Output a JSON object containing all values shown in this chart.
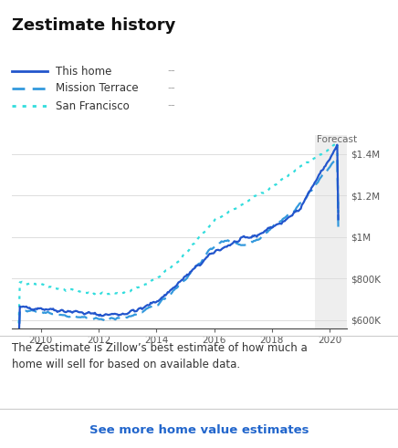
{
  "title": "Zestimate history",
  "legend_items": [
    {
      "label": "This home",
      "color": "#2255cc",
      "style": "solid"
    },
    {
      "label": "Mission Terrace",
      "color": "#3399dd",
      "style": "dashed"
    },
    {
      "label": "San Francisco",
      "color": "#33dddd",
      "style": "dotted"
    }
  ],
  "forecast_label": "Forecast",
  "forecast_start": 2019.5,
  "x_ticks": [
    2010,
    2012,
    2014,
    2016,
    2018,
    2020
  ],
  "y_ticks": [
    600000,
    800000,
    1000000,
    1200000,
    1400000
  ],
  "y_tick_labels": [
    "$600K",
    "$800K",
    "$1M",
    "$1.2M",
    "$1.4M"
  ],
  "ylim": [
    560000,
    1490000
  ],
  "xlim": [
    2009.0,
    2020.6
  ],
  "background_color": "#ffffff",
  "forecast_bg": "#eeeeee",
  "footer_text": "The Zestimate is Zillow’s best estimate of how much a\nhome will sell for based on available data.",
  "link_text": "See more home value estimates",
  "link_color": "#2266cc"
}
